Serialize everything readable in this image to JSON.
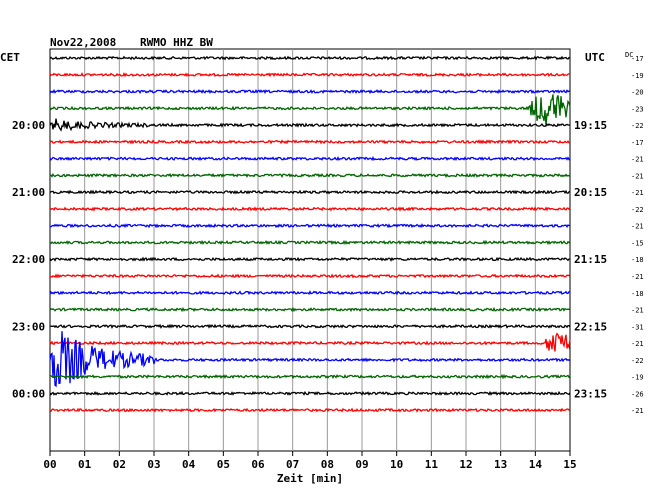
{
  "header": {
    "date": "Nov22,2008",
    "station": "RWMO HHZ BW",
    "left_tz": "CET",
    "right_tz": "UTC",
    "dc_label": "DC"
  },
  "chart_data": {
    "type": "line",
    "subtype": "helicorder",
    "xlabel": "Zeit [min]",
    "x_ticks": [
      "00",
      "01",
      "02",
      "03",
      "04",
      "05",
      "06",
      "07",
      "08",
      "09",
      "10",
      "11",
      "12",
      "13",
      "14",
      "15"
    ],
    "xlim": [
      0,
      15
    ],
    "trace_colors": [
      "#000000",
      "#ff0000",
      "#0000ff",
      "#006400"
    ],
    "left_time_labels": [
      {
        "trace": 4,
        "label": "20:00"
      },
      {
        "trace": 8,
        "label": "21:00"
      },
      {
        "trace": 12,
        "label": "22:00"
      },
      {
        "trace": 16,
        "label": "23:00"
      },
      {
        "trace": 20,
        "label": "00:00"
      }
    ],
    "right_time_labels": [
      {
        "trace": 4,
        "label": "19:15"
      },
      {
        "trace": 8,
        "label": "20:15"
      },
      {
        "trace": 12,
        "label": "21:15"
      },
      {
        "trace": 16,
        "label": "22:15"
      },
      {
        "trace": 20,
        "label": "23:15"
      }
    ],
    "dc_offsets": [
      "-17",
      "-19",
      "-20",
      "-23",
      "-22",
      "-17",
      "-21",
      "-21",
      "-21",
      "-22",
      "-21",
      "-15",
      "-18",
      "-21",
      "-18",
      "-21",
      "-31",
      "-21",
      "-22",
      "-19",
      "-26",
      "-21"
    ],
    "events": [
      {
        "trace": 3,
        "x_start_min": 13.8,
        "x_end_min": 15.0,
        "amplitude": 0.9
      },
      {
        "trace": 4,
        "x_start_min": 0.0,
        "x_end_min": 2.8,
        "amplitude": 0.35
      },
      {
        "trace": 17,
        "x_start_min": 14.3,
        "x_end_min": 15.0,
        "amplitude": 0.75
      },
      {
        "trace": 18,
        "x_start_min": 0.0,
        "x_end_min": 3.0,
        "amplitude": 2.2
      }
    ]
  }
}
